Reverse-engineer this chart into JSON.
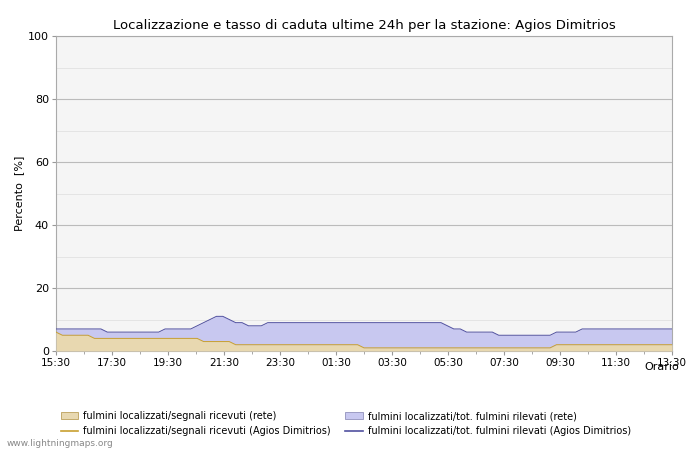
{
  "title": "Localizzazione e tasso di caduta ultime 24h per la stazione: Agios Dimitrios",
  "xlabel": "Orario",
  "ylabel": "Percento  [%]",
  "ylim": [
    0,
    100
  ],
  "yticks": [
    0,
    20,
    40,
    60,
    80,
    100
  ],
  "yminor": [
    10,
    30,
    50,
    70,
    90
  ],
  "x_labels": [
    "15:30",
    "17:30",
    "19:30",
    "21:30",
    "23:30",
    "01:30",
    "03:30",
    "05:30",
    "07:30",
    "09:30",
    "11:30",
    "13:30"
  ],
  "background_color": "#ffffff",
  "plot_bg_color": "#f5f5f5",
  "grid_major_color": "#bbbbbb",
  "grid_minor_color": "#dddddd",
  "watermark": "www.lightningmaps.org",
  "fill_rete_color": "#e8d8b0",
  "fill_station_color": "#c8c8f0",
  "line_rete_color": "#c8a030",
  "line_station_color": "#5050a0",
  "n_points": 97,
  "rete_fill": [
    6,
    5,
    5,
    5,
    5,
    5,
    4,
    4,
    4,
    4,
    4,
    4,
    4,
    4,
    4,
    4,
    4,
    4,
    4,
    4,
    4,
    4,
    4,
    3,
    3,
    3,
    3,
    3,
    2,
    2,
    2,
    2,
    2,
    2,
    2,
    2,
    2,
    2,
    2,
    2,
    2,
    2,
    2,
    2,
    2,
    2,
    2,
    2,
    1,
    1,
    1,
    1,
    1,
    1,
    1,
    1,
    1,
    1,
    1,
    1,
    1,
    1,
    1,
    1,
    1,
    1,
    1,
    1,
    1,
    1,
    1,
    1,
    1,
    1,
    1,
    1,
    1,
    1,
    2,
    2,
    2,
    2,
    2,
    2,
    2,
    2,
    2,
    2,
    2,
    2,
    2,
    2,
    2,
    2,
    2,
    2,
    2
  ],
  "station_fill": [
    7,
    7,
    7,
    7,
    7,
    7,
    7,
    7,
    6,
    6,
    6,
    6,
    6,
    6,
    6,
    6,
    6,
    7,
    7,
    7,
    7,
    7,
    8,
    9,
    10,
    11,
    11,
    10,
    9,
    9,
    8,
    8,
    8,
    9,
    9,
    9,
    9,
    9,
    9,
    9,
    9,
    9,
    9,
    9,
    9,
    9,
    9,
    9,
    9,
    9,
    9,
    9,
    9,
    9,
    9,
    9,
    9,
    9,
    9,
    9,
    9,
    8,
    7,
    7,
    6,
    6,
    6,
    6,
    6,
    5,
    5,
    5,
    5,
    5,
    5,
    5,
    5,
    5,
    6,
    6,
    6,
    6,
    7,
    7,
    7,
    7,
    7,
    7,
    7,
    7,
    7,
    7,
    7,
    7,
    7,
    7,
    7
  ],
  "legend_labels": [
    "fulmini localizzati/segnali ricevuti (rete)",
    "fulmini localizzati/segnali ricevuti (Agios Dimitrios)",
    "fulmini localizzati/tot. fulmini rilevati (rete)",
    "fulmini localizzati/tot. fulmini rilevati (Agios Dimitrios)"
  ]
}
